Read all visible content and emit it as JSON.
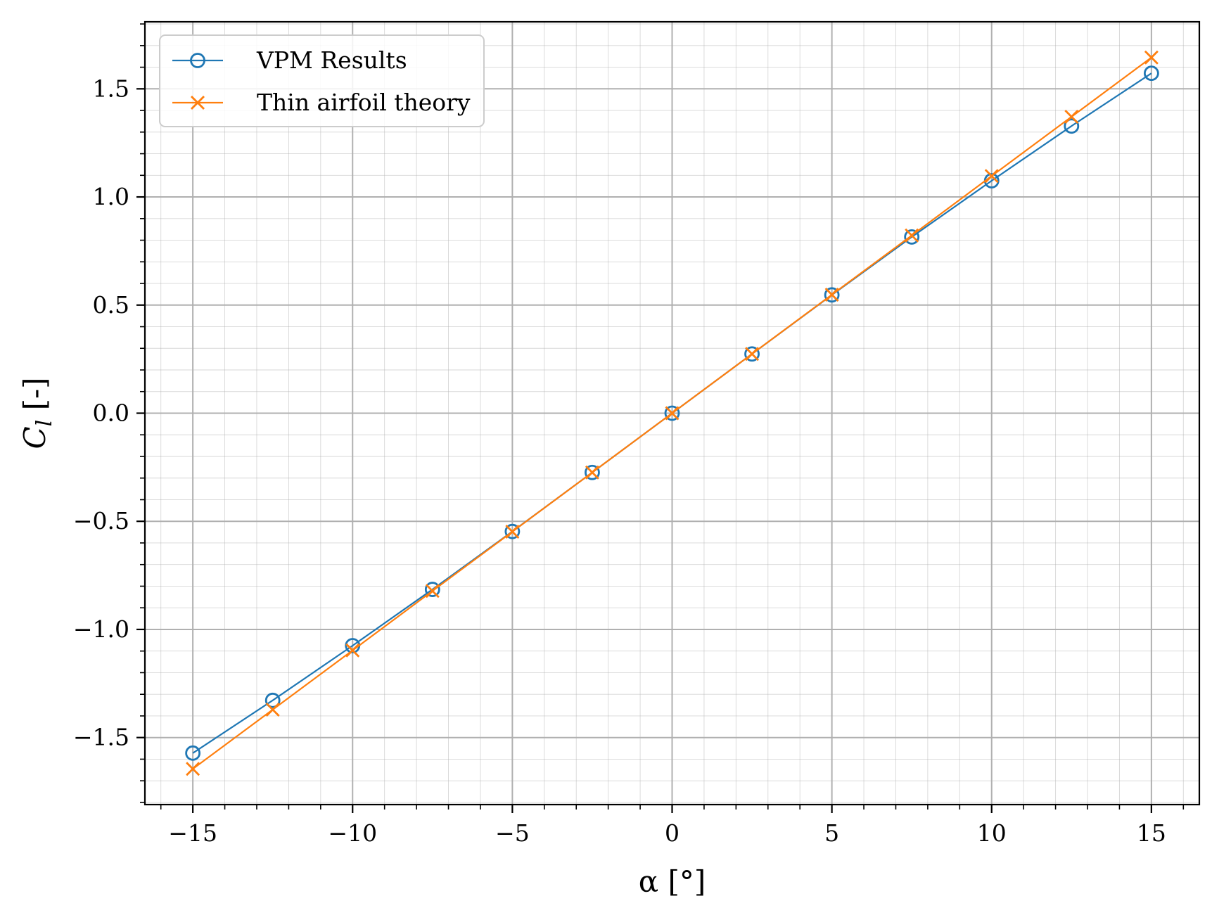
{
  "chart_data": {
    "type": "line",
    "x": [
      -15,
      -12.5,
      -10,
      -7.5,
      -5,
      -2.5,
      0,
      2.5,
      5,
      7.5,
      10,
      12.5,
      15
    ],
    "series": [
      {
        "name": "VPM Results",
        "marker": "circle",
        "color": "#1f77b4",
        "values": [
          -1.572,
          -1.328,
          -1.075,
          -0.815,
          -0.547,
          -0.274,
          0.0,
          0.274,
          0.547,
          0.815,
          1.075,
          1.328,
          1.572
        ]
      },
      {
        "name": "Thin airfoil theory",
        "marker": "x",
        "color": "#ff7f0e",
        "values": [
          -1.645,
          -1.371,
          -1.097,
          -0.822,
          -0.548,
          -0.274,
          0.0,
          0.274,
          0.548,
          0.822,
          1.097,
          1.371,
          1.645
        ]
      }
    ],
    "xlabel": "α [°]",
    "ylabel": "C_l [-]",
    "ylabel_main": "C",
    "ylabel_sub": "l",
    "ylabel_unit": " [-]",
    "xlim": [
      -16.5,
      16.5
    ],
    "ylim": [
      -1.81,
      1.81
    ],
    "xticks": [
      -15,
      -10,
      -5,
      0,
      5,
      10,
      15
    ],
    "xtick_labels": [
      "−15",
      "−10",
      "−5",
      "0",
      "5",
      "10",
      "15"
    ],
    "yticks": [
      -1.5,
      -1.0,
      -0.5,
      0.0,
      0.5,
      1.0,
      1.5
    ],
    "ytick_labels": [
      "−1.5",
      "−1.0",
      "−0.5",
      "0.0",
      "0.5",
      "1.0",
      "1.5"
    ],
    "grid": "major and minor",
    "legend": "upper-left",
    "gridColor": "#b0b0b0"
  }
}
